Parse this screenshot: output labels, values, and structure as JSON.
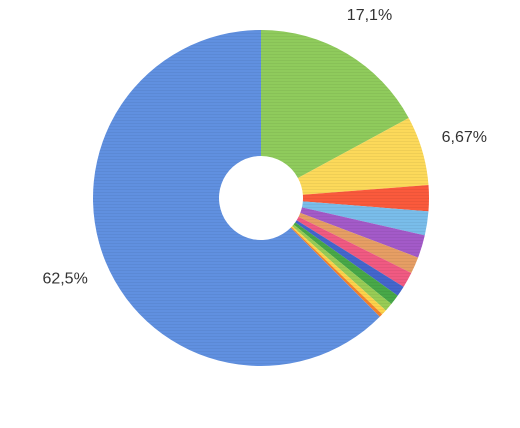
{
  "chart_data": {
    "type": "donut",
    "values": [
      17.1,
      6.67,
      2.5,
      2.3,
      2.2,
      1.6,
      1.5,
      1.0,
      1.0,
      0.8,
      0.5,
      0.33,
      62.5
    ],
    "value_labels": [
      "17,1%",
      "6,67%",
      null,
      null,
      null,
      null,
      null,
      null,
      null,
      null,
      null,
      null,
      "62,5%"
    ],
    "colors": [
      "#8fcb5c",
      "#fcd95a",
      "#fa5a3c",
      "#79bdea",
      "#a35ac8",
      "#e69e64",
      "#f05a82",
      "#4466cc",
      "#48a848",
      "#98cc55",
      "#fcd34a",
      "#f5822d",
      "#6090e0"
    ]
  }
}
